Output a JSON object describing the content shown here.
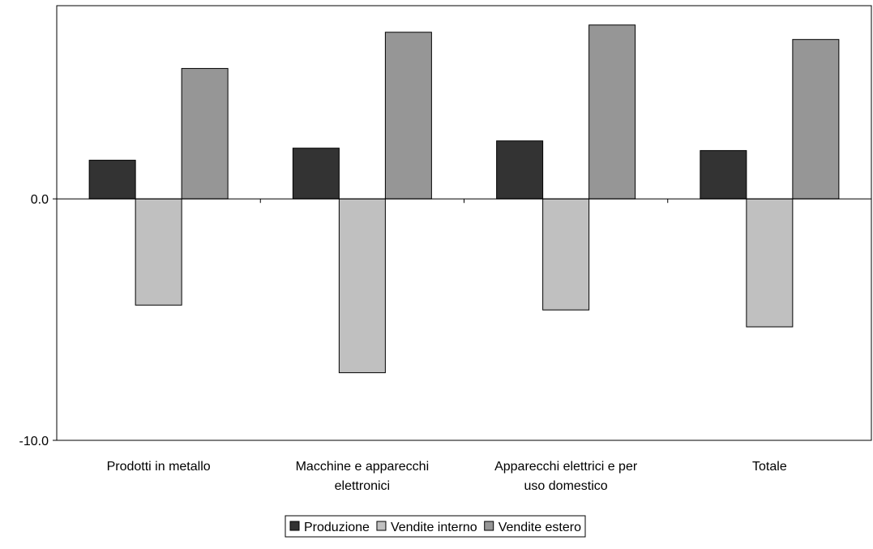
{
  "chart_data": {
    "type": "bar",
    "title": "",
    "xlabel": "",
    "ylabel": "",
    "categories": [
      [
        "Prodotti in metallo"
      ],
      [
        "Macchine e apparecchi",
        "elettronici"
      ],
      [
        "Apparecchi elettrici e per",
        "uso domestico"
      ],
      [
        "Totale"
      ]
    ],
    "series": [
      {
        "name": "Produzione",
        "color": "#333333",
        "values": [
          1.6,
          2.1,
          2.4,
          2.0
        ]
      },
      {
        "name": "Vendite interno",
        "color": "#c0c0c0",
        "values": [
          -4.4,
          -7.2,
          -4.6,
          -5.3
        ]
      },
      {
        "name": "Vendite estero",
        "color": "#969696",
        "values": [
          5.4,
          6.9,
          7.2,
          6.6
        ]
      }
    ],
    "ylim": [
      -10,
      8
    ],
    "yticks": [
      {
        "value": 0,
        "label": "0.0"
      },
      {
        "value": -10,
        "label": "-10.0"
      }
    ],
    "legend_position": "bottom-center",
    "grid": false
  }
}
